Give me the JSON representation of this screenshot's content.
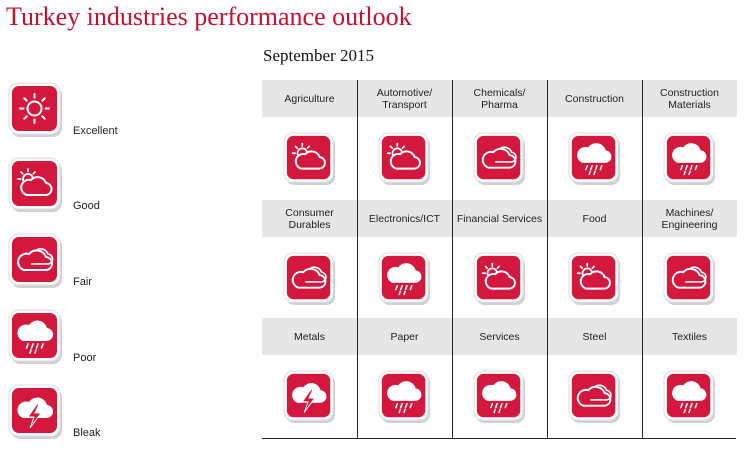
{
  "title": "Turkey industries performance outlook",
  "subtitle": "September 2015",
  "legend": [
    "Excellent",
    "Good",
    "Fair",
    "Poor",
    "Bleak"
  ],
  "industries": [
    {
      "name": "Agriculture",
      "outlook": "Good"
    },
    {
      "name": "Automotive/\nTransport",
      "outlook": "Good"
    },
    {
      "name": "Chemicals/\nPharma",
      "outlook": "Fair"
    },
    {
      "name": "Construction",
      "outlook": "Poor"
    },
    {
      "name": "Construction\nMaterials",
      "outlook": "Poor"
    },
    {
      "name": "Consumer\nDurables",
      "outlook": "Fair"
    },
    {
      "name": "Electronics/ICT",
      "outlook": "Poor"
    },
    {
      "name": "Financial Services",
      "outlook": "Good"
    },
    {
      "name": "Food",
      "outlook": "Good"
    },
    {
      "name": "Machines/\nEngineering",
      "outlook": "Fair"
    },
    {
      "name": "Metals",
      "outlook": "Bleak"
    },
    {
      "name": "Paper",
      "outlook": "Poor"
    },
    {
      "name": "Services",
      "outlook": "Poor"
    },
    {
      "name": "Steel",
      "outlook": "Fair"
    },
    {
      "name": "Textiles",
      "outlook": "Poor"
    }
  ]
}
